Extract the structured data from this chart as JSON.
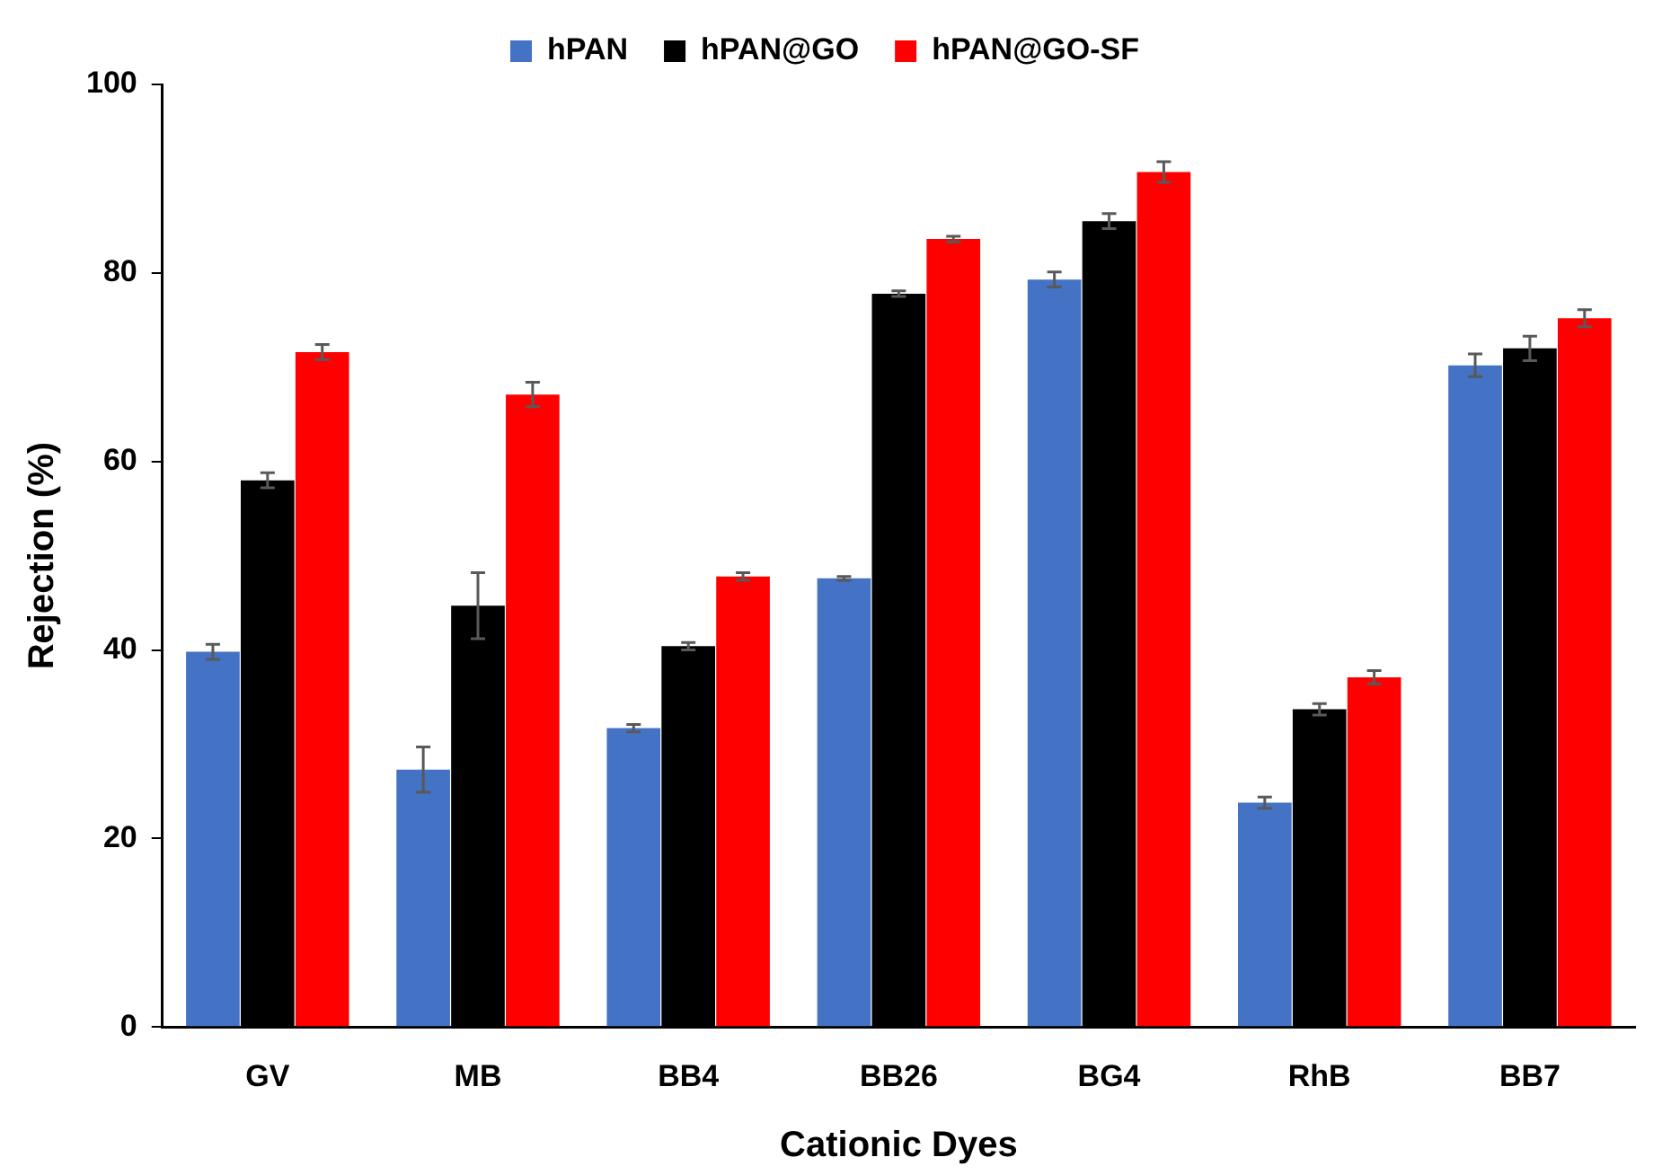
{
  "chart_data": {
    "type": "bar",
    "xlabel": "Cationic Dyes",
    "ylabel": "Rejection (%)",
    "categories": [
      "GV",
      "MB",
      "BB4",
      "BB26",
      "BG4",
      "RhB",
      "BB7"
    ],
    "series": [
      {
        "name": "hPAN",
        "color": "#4472c4",
        "values": [
          39.8,
          27.3,
          31.7,
          47.6,
          79.3,
          23.8,
          70.2
        ],
        "errors": [
          0.8,
          2.4,
          0.4,
          0.2,
          0.8,
          0.6,
          1.2
        ]
      },
      {
        "name": "hPAN@GO",
        "color": "#000000",
        "values": [
          58.0,
          44.7,
          40.4,
          77.8,
          85.5,
          33.7,
          72.0
        ],
        "errors": [
          0.8,
          3.5,
          0.4,
          0.3,
          0.8,
          0.6,
          1.3
        ]
      },
      {
        "name": "hPAN@GO-SF",
        "color": "#ff0000",
        "values": [
          71.6,
          67.1,
          47.8,
          83.6,
          90.7,
          37.1,
          75.2
        ],
        "errors": [
          0.8,
          1.3,
          0.4,
          0.3,
          1.1,
          0.7,
          0.9
        ]
      }
    ],
    "ylim": [
      0,
      100
    ],
    "yticks": [
      0,
      20,
      40,
      60,
      80,
      100
    ],
    "grid": false,
    "legend": "top"
  }
}
